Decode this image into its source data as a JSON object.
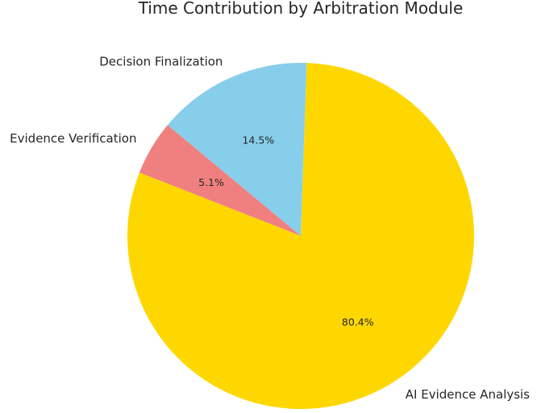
{
  "chart_data": {
    "type": "pie",
    "title": "Time Contribution by Arbitration Module",
    "start_angle_deg": 88,
    "direction": "counterclockwise",
    "slices": [
      {
        "label": "Decision Finalization",
        "value": 14.5,
        "pct_label": "14.5%",
        "color": "#87CEEB"
      },
      {
        "label": "Evidence Verification",
        "value": 5.1,
        "pct_label": "5.1%",
        "color": "#F08080"
      },
      {
        "label": "AI Evidence Analysis",
        "value": 80.4,
        "pct_label": "80.4%",
        "color": "#FFD700"
      }
    ]
  }
}
